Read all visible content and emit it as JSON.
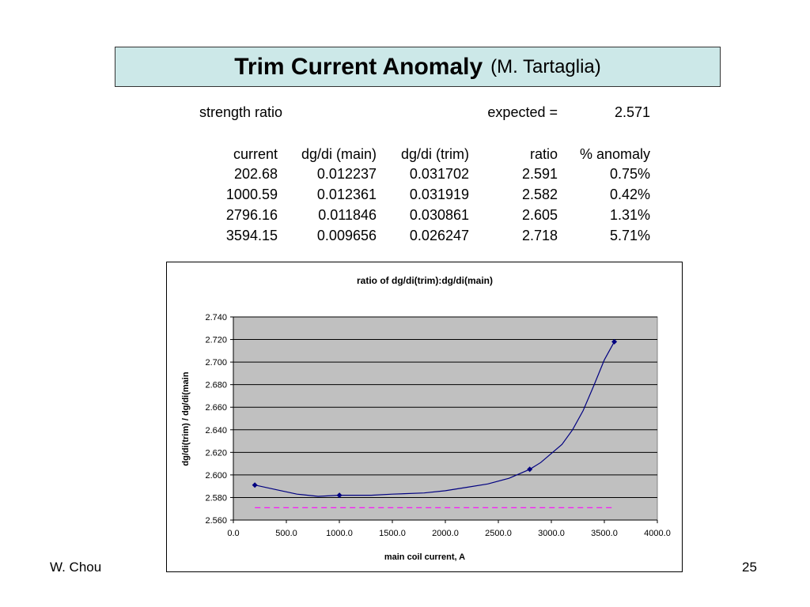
{
  "slide": {
    "title": "Trim Current Anomaly",
    "subtitle": "(M. Tartaglia)",
    "author": "W. Chou",
    "page_number": "25"
  },
  "table": {
    "strength_label": "strength ratio",
    "expected_label": "expected =",
    "expected_value": "2.571",
    "headers": [
      "current",
      "dg/di (main)",
      "dg/di (trim)",
      "ratio",
      "% anomaly"
    ],
    "rows": [
      [
        "202.68",
        "0.012237",
        "0.031702",
        "2.591",
        "0.75%"
      ],
      [
        "1000.59",
        "0.012361",
        "0.031919",
        "2.582",
        "0.42%"
      ],
      [
        "2796.16",
        "0.011846",
        "0.030861",
        "2.605",
        "1.31%"
      ],
      [
        "3594.15",
        "0.009656",
        "0.026247",
        "2.718",
        "5.71%"
      ]
    ]
  },
  "chart_data": {
    "type": "line",
    "title": "ratio of dg/di(trim):dg/di(main)",
    "xlabel": "main coil current, A",
    "ylabel": "dg/di(trim) / dg/di(main",
    "xlim": [
      0,
      4000
    ],
    "ylim": [
      2.56,
      2.74
    ],
    "x_ticks": [
      "0.0",
      "500.0",
      "1000.0",
      "1500.0",
      "2000.0",
      "2500.0",
      "3000.0",
      "3500.0",
      "4000.0"
    ],
    "y_ticks": [
      "2.560",
      "2.580",
      "2.600",
      "2.620",
      "2.640",
      "2.660",
      "2.680",
      "2.700",
      "2.720",
      "2.740"
    ],
    "grid": true,
    "plot_background": "#c0c0c0",
    "series": [
      {
        "name": "",
        "color": "#000080",
        "marker": "diamond",
        "points": [
          [
            202.68,
            2.591
          ],
          [
            1000.59,
            2.582
          ],
          [
            2796.16,
            2.605
          ],
          [
            3594.15,
            2.718
          ]
        ]
      },
      {
        "name": "",
        "color": "#000080",
        "style": "smooth",
        "marker": "none",
        "points": [
          [
            202.68,
            2.591
          ],
          [
            400,
            2.587
          ],
          [
            600,
            2.583
          ],
          [
            800,
            2.581
          ],
          [
            1000.59,
            2.582
          ],
          [
            1300,
            2.582
          ],
          [
            1500,
            2.583
          ],
          [
            1800,
            2.584
          ],
          [
            2000,
            2.586
          ],
          [
            2200,
            2.589
          ],
          [
            2400,
            2.592
          ],
          [
            2600,
            2.597
          ],
          [
            2796.16,
            2.605
          ],
          [
            2900,
            2.611
          ],
          [
            3100,
            2.627
          ],
          [
            3200,
            2.64
          ],
          [
            3300,
            2.657
          ],
          [
            3400,
            2.679
          ],
          [
            3500,
            2.702
          ],
          [
            3594.15,
            2.718
          ]
        ]
      },
      {
        "name": "",
        "color": "#ff00ff",
        "style": "dashed",
        "marker": "none",
        "points": [
          [
            202.68,
            2.571
          ],
          [
            3594.15,
            2.571
          ]
        ]
      }
    ]
  }
}
